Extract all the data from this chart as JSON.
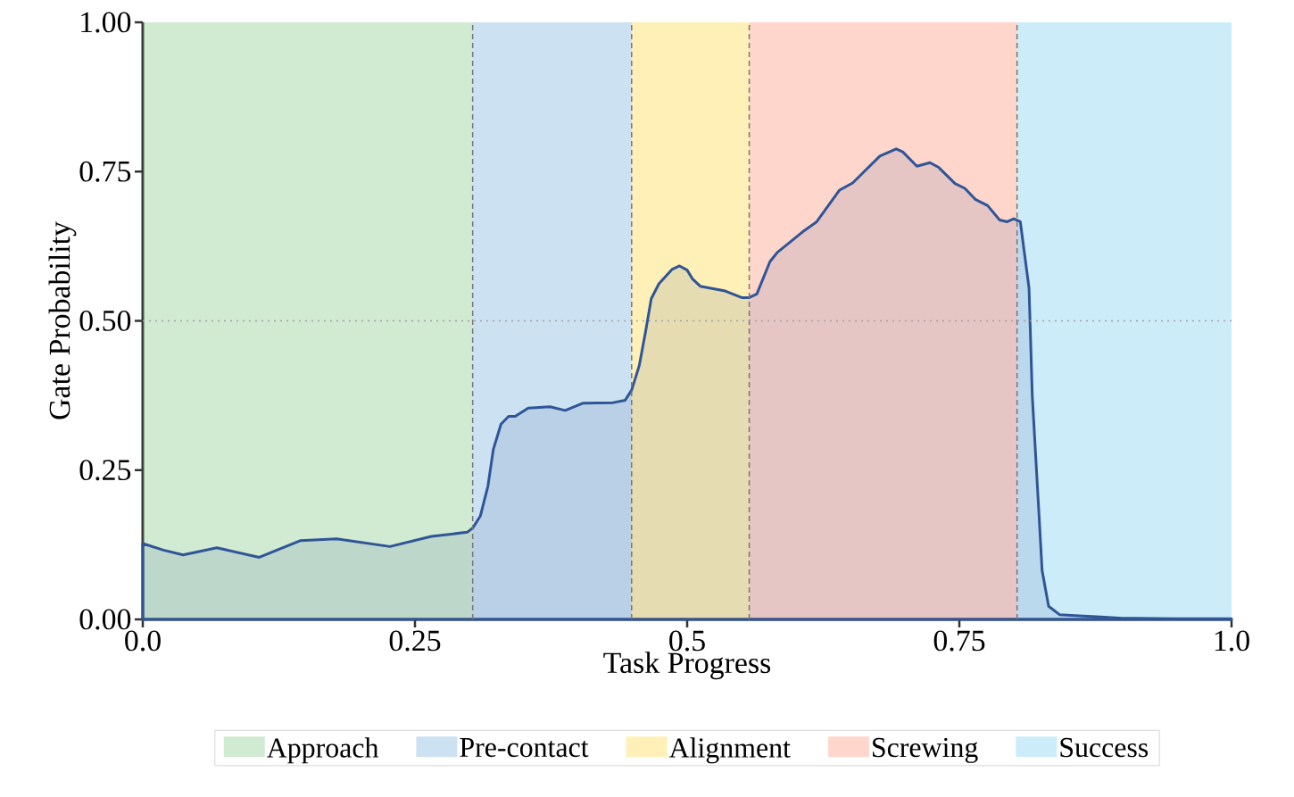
{
  "chart_data": {
    "type": "area",
    "xlabel": "Task Progress",
    "ylabel": "Gate Probability",
    "xlim": [
      0,
      1
    ],
    "ylim": [
      0,
      1
    ],
    "xticks": [
      {
        "value": 0,
        "label": "0.0"
      },
      {
        "value": 0.25,
        "label": "0.25"
      },
      {
        "value": 0.5,
        "label": "0.5"
      },
      {
        "value": 0.75,
        "label": "0.75"
      },
      {
        "value": 1,
        "label": "1.0"
      }
    ],
    "yticks": [
      {
        "value": 0,
        "label": "0.00"
      },
      {
        "value": 0.25,
        "label": "0.25"
      },
      {
        "value": 0.5,
        "label": "0.50"
      },
      {
        "value": 0.75,
        "label": "0.75"
      },
      {
        "value": 1,
        "label": "1.00"
      }
    ],
    "x": [
      0,
      0.019,
      0.037,
      0.068,
      0.107,
      0.145,
      0.178,
      0.227,
      0.265,
      0.298,
      0.303,
      0.31,
      0.317,
      0.322,
      0.329,
      0.336,
      0.342,
      0.354,
      0.374,
      0.388,
      0.404,
      0.432,
      0.443,
      0.449,
      0.456,
      0.462,
      0.467,
      0.474,
      0.486,
      0.493,
      0.5,
      0.505,
      0.512,
      0.535,
      0.55,
      0.557,
      0.564,
      0.576,
      0.583,
      0.606,
      0.619,
      0.64,
      0.652,
      0.677,
      0.692,
      0.698,
      0.711,
      0.723,
      0.731,
      0.746,
      0.755,
      0.765,
      0.776,
      0.787,
      0.794,
      0.8,
      0.806,
      0.814,
      0.817,
      0.823,
      0.826,
      0.832,
      0.842,
      0.86,
      0.88,
      0.9,
      0.95,
      1.0
    ],
    "series": [
      {
        "color": "#2f5597",
        "values": [
          0.127,
          0.116,
          0.108,
          0.12,
          0.104,
          0.132,
          0.135,
          0.122,
          0.139,
          0.146,
          0.153,
          0.173,
          0.223,
          0.285,
          0.327,
          0.34,
          0.34,
          0.354,
          0.356,
          0.35,
          0.362,
          0.363,
          0.367,
          0.384,
          0.425,
          0.484,
          0.537,
          0.562,
          0.586,
          0.592,
          0.585,
          0.57,
          0.558,
          0.55,
          0.539,
          0.539,
          0.545,
          0.599,
          0.615,
          0.649,
          0.666,
          0.719,
          0.731,
          0.776,
          0.788,
          0.783,
          0.759,
          0.765,
          0.757,
          0.73,
          0.722,
          0.703,
          0.693,
          0.669,
          0.666,
          0.671,
          0.666,
          0.555,
          0.374,
          0.181,
          0.082,
          0.022,
          0.008,
          0.006,
          0.004,
          0.002,
          0.001,
          0.001
        ]
      }
    ],
    "bands": [
      {
        "axis": "x",
        "from": 0,
        "to": 0.303,
        "label": "Approach",
        "color": "#66bb6a"
      },
      {
        "axis": "x",
        "from": 0.303,
        "to": 0.449,
        "label": "Pre-contact",
        "color": "#56a0d8"
      },
      {
        "axis": "x",
        "from": 0.449,
        "to": 0.557,
        "label": "Alignment",
        "color": "#ffcc11"
      },
      {
        "axis": "x",
        "from": 0.557,
        "to": 0.803,
        "label": "Screwing",
        "color": "#ff7755"
      },
      {
        "axis": "x",
        "from": 0.803,
        "to": 1,
        "label": "Success",
        "color": "#5bc0eb"
      }
    ],
    "ref_lines": [
      {
        "axis": "x",
        "value": 0.303,
        "color": "#777777",
        "line_style": "dashed"
      },
      {
        "axis": "x",
        "value": 0.449,
        "color": "#777777",
        "line_style": "dashed"
      },
      {
        "axis": "x",
        "value": 0.557,
        "color": "#777777",
        "line_style": "dashed"
      },
      {
        "axis": "x",
        "value": 0.803,
        "color": "#777777",
        "line_style": "dashed"
      },
      {
        "axis": "y",
        "value": 0.5,
        "color": "#a0a0a0",
        "line_style": "dotted"
      }
    ],
    "legend": "bottom"
  }
}
